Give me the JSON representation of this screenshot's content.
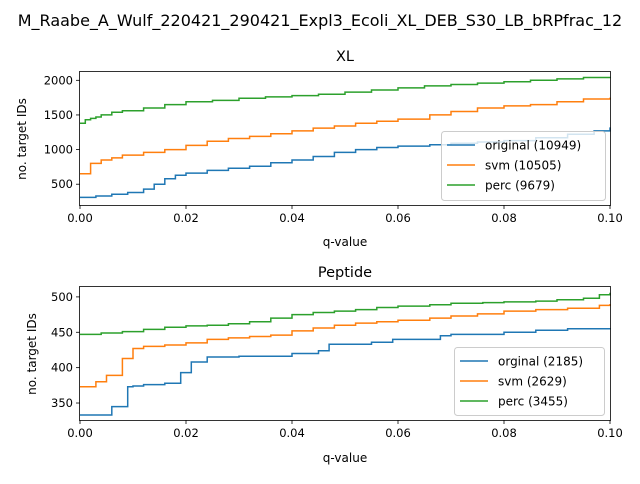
{
  "figure_title": "M_Raabe_A_Wulf_220421_290421_Expl3_Ecoli_XL_DEB_S30_LB_bRPfrac_12",
  "colors": {
    "blue": "#1f77b4",
    "orange": "#ff7f0e",
    "green": "#2ca02c"
  },
  "chart_data": [
    {
      "type": "line",
      "step": true,
      "title": "XL",
      "xlabel": "q-value",
      "ylabel": "no. target IDs",
      "xlim": [
        0,
        0.1
      ],
      "ylim": [
        200,
        2120
      ],
      "xticks": [
        0,
        0.02,
        0.04,
        0.06,
        0.08,
        0.1
      ],
      "xtick_labels": [
        "0.00",
        "0.02",
        "0.04",
        "0.06",
        "0.08",
        "0.10"
      ],
      "yticks": [
        500,
        1000,
        1500,
        2000
      ],
      "ytick_labels": [
        "500",
        "1000",
        "1500",
        "2000"
      ],
      "legend_position": "lower-right",
      "series": [
        {
          "name": "original (10949)",
          "color": "#1f77b4",
          "x": [
            0,
            0.003,
            0.006,
            0.009,
            0.012,
            0.014,
            0.016,
            0.018,
            0.02,
            0.024,
            0.028,
            0.032,
            0.036,
            0.04,
            0.044,
            0.048,
            0.052,
            0.056,
            0.06,
            0.066,
            0.07,
            0.075,
            0.08,
            0.086,
            0.092,
            0.097,
            0.1
          ],
          "y": [
            310,
            330,
            355,
            380,
            430,
            500,
            580,
            630,
            660,
            700,
            730,
            760,
            810,
            850,
            900,
            960,
            1000,
            1030,
            1050,
            1070,
            1090,
            1110,
            1130,
            1170,
            1220,
            1270,
            1320
          ]
        },
        {
          "name": "svm (10505)",
          "color": "#ff7f0e",
          "x": [
            0,
            0.0015,
            0.002,
            0.004,
            0.006,
            0.008,
            0.012,
            0.016,
            0.02,
            0.024,
            0.028,
            0.032,
            0.036,
            0.04,
            0.044,
            0.048,
            0.052,
            0.056,
            0.06,
            0.066,
            0.07,
            0.075,
            0.08,
            0.085,
            0.09,
            0.095,
            0.1
          ],
          "y": [
            650,
            650,
            800,
            850,
            880,
            920,
            960,
            1000,
            1060,
            1120,
            1160,
            1190,
            1230,
            1270,
            1310,
            1340,
            1380,
            1410,
            1440,
            1500,
            1550,
            1600,
            1630,
            1650,
            1690,
            1730,
            1750
          ]
        },
        {
          "name": "perc (9679)",
          "color": "#2ca02c",
          "x": [
            0,
            0.001,
            0.002,
            0.003,
            0.004,
            0.006,
            0.008,
            0.012,
            0.016,
            0.02,
            0.025,
            0.03,
            0.035,
            0.04,
            0.045,
            0.05,
            0.055,
            0.06,
            0.065,
            0.07,
            0.075,
            0.08,
            0.085,
            0.09,
            0.095,
            0.1
          ],
          "y": [
            1380,
            1430,
            1450,
            1470,
            1500,
            1540,
            1560,
            1600,
            1650,
            1690,
            1710,
            1740,
            1760,
            1780,
            1800,
            1830,
            1860,
            1890,
            1920,
            1940,
            1960,
            1980,
            2000,
            2020,
            2040,
            2050
          ]
        }
      ]
    },
    {
      "type": "line",
      "step": true,
      "title": "Peptide",
      "xlabel": "q-value",
      "ylabel": "no. target IDs",
      "xlim": [
        0,
        0.1
      ],
      "ylim": [
        326,
        514
      ],
      "xticks": [
        0,
        0.02,
        0.04,
        0.06,
        0.08,
        0.1
      ],
      "xtick_labels": [
        "0.00",
        "0.02",
        "0.04",
        "0.06",
        "0.08",
        "0.10"
      ],
      "yticks": [
        350,
        400,
        450,
        500
      ],
      "ytick_labels": [
        "350",
        "400",
        "450",
        "500"
      ],
      "legend_position": "lower-right",
      "series": [
        {
          "name": "orginal (2185)",
          "color": "#1f77b4",
          "x": [
            0,
            0.006,
            0.009,
            0.01,
            0.012,
            0.016,
            0.019,
            0.021,
            0.024,
            0.03,
            0.04,
            0.045,
            0.047,
            0.055,
            0.059,
            0.068,
            0.07,
            0.08,
            0.086,
            0.092,
            0.1
          ],
          "y": [
            333,
            345,
            373,
            374,
            376,
            378,
            393,
            408,
            415,
            416,
            420,
            424,
            433,
            436,
            440,
            445,
            447,
            450,
            453,
            455,
            456
          ]
        },
        {
          "name": "svm (2629)",
          "color": "#ff7f0e",
          "x": [
            0,
            0.003,
            0.005,
            0.008,
            0.01,
            0.012,
            0.016,
            0.02,
            0.024,
            0.028,
            0.032,
            0.036,
            0.04,
            0.044,
            0.048,
            0.052,
            0.056,
            0.06,
            0.066,
            0.07,
            0.075,
            0.08,
            0.086,
            0.092,
            0.098,
            0.1
          ],
          "y": [
            373,
            380,
            389,
            413,
            427,
            430,
            432,
            435,
            440,
            442,
            444,
            446,
            452,
            456,
            460,
            463,
            465,
            467,
            470,
            473,
            476,
            480,
            482,
            484,
            488,
            490
          ]
        },
        {
          "name": "perc (3455)",
          "color": "#2ca02c",
          "x": [
            0,
            0.004,
            0.008,
            0.012,
            0.016,
            0.02,
            0.024,
            0.028,
            0.032,
            0.036,
            0.04,
            0.044,
            0.048,
            0.052,
            0.056,
            0.06,
            0.066,
            0.07,
            0.076,
            0.08,
            0.086,
            0.09,
            0.095,
            0.098,
            0.1
          ],
          "y": [
            447,
            449,
            451,
            454,
            457,
            459,
            460,
            462,
            465,
            470,
            475,
            478,
            480,
            482,
            485,
            487,
            489,
            491,
            492,
            493,
            494,
            496,
            498,
            503,
            506
          ]
        }
      ]
    }
  ]
}
